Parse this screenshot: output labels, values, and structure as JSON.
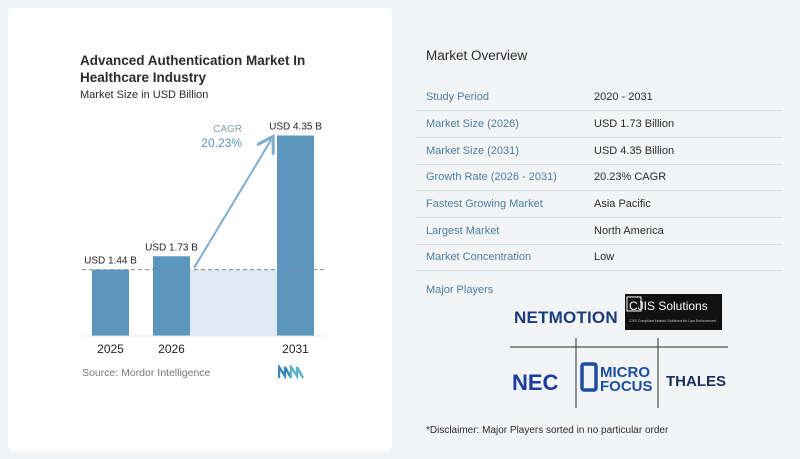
{
  "chart_data": {
    "type": "bar",
    "title": "Advanced Authentication Market In Healthcare Industry",
    "subtitle": "Market Size in USD Billion",
    "categories": [
      "2025",
      "2026",
      "2031"
    ],
    "values": [
      1.44,
      1.73,
      4.35
    ],
    "value_labels": [
      "USD 1.44 B",
      "USD 1.73 B",
      "USD 4.35 B"
    ],
    "ylim": [
      0,
      4.6
    ],
    "cagr_label": "CAGR",
    "cagr_value": "20.23%",
    "bar_color": "#5b96bf",
    "arrow_color": "#7fadd0"
  },
  "source": "Source: Mordor Intelligence",
  "overview": {
    "title": "Market Overview",
    "rows": [
      {
        "key": "Study Period",
        "value": "2020 - 2031"
      },
      {
        "key": "Market Size (2026)",
        "value": "USD 1.73 Billion"
      },
      {
        "key": "Market Size (2031)",
        "value": "USD 4.35 Billion"
      },
      {
        "key": "Growth Rate (2026 - 2031)",
        "value": "20.23% CAGR"
      },
      {
        "key": "Fastest Growing Market",
        "value": "Asia Pacific"
      },
      {
        "key": "Largest Market",
        "value": "North America"
      },
      {
        "key": "Market Concentration",
        "value": "Low"
      }
    ],
    "major_players_label": "Major Players",
    "players": [
      "NETMOTION",
      "CJIS Solutions",
      "CJIS Compliant Hosted Solutions for Law Enforcement",
      "NEC",
      "MICRO",
      "FOCUS",
      "THALES"
    ],
    "disclaimer": "*Disclaimer: Major Players sorted in no particular order"
  }
}
